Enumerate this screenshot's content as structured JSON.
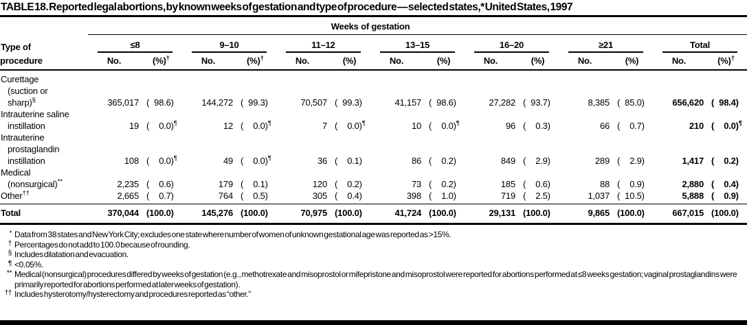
{
  "page": {
    "title": "TABLE 18. Reported legal abortions, by known weeks of gestation and type of procedure — selected states,* United States, 1997"
  },
  "table": {
    "spanner": "Weeks of gestation",
    "stub_head": {
      "line1": "Type of",
      "line2": "procedure"
    },
    "groups": [
      {
        "label": "≤8",
        "no_head": "No.",
        "pct_head": "(%)",
        "pct_sup": "†"
      },
      {
        "label": "9–10",
        "no_head": "No.",
        "pct_head": "(%)",
        "pct_sup": "†"
      },
      {
        "label": "11–12",
        "no_head": "No.",
        "pct_head": "(%)"
      },
      {
        "label": "13–15",
        "no_head": "No.",
        "pct_head": "(%)"
      },
      {
        "label": "16–20",
        "no_head": "No.",
        "pct_head": "(%)"
      },
      {
        "label": "≥21",
        "no_head": "No.",
        "pct_head": "(%)"
      },
      {
        "label": "Total",
        "no_head": "No.",
        "pct_head": "(%)",
        "pct_sup": "†"
      }
    ],
    "rows": [
      {
        "lines": [
          {
            "t": "Curettage"
          },
          {
            "t": "(suction or"
          },
          {
            "t": "sharp)",
            "sup": "§"
          }
        ],
        "cells": [
          {
            "no": "365,017",
            "pct": "( 98.6)"
          },
          {
            "no": "144,272",
            "pct": "( 99.3)"
          },
          {
            "no": "70,507",
            "pct": "( 99.3)"
          },
          {
            "no": "41,157",
            "pct": "( 98.6)"
          },
          {
            "no": "27,282",
            "pct": "( 93.7)"
          },
          {
            "no": "8,385",
            "pct": "( 85.0)"
          },
          {
            "no": "656,620",
            "pct": "( 98.4)"
          }
        ]
      },
      {
        "lines": [
          {
            "t": "Intrauterine saline"
          },
          {
            "t": "instillation"
          }
        ],
        "cells": [
          {
            "no": "19",
            "pct": "(  0.0)",
            "sup": "¶"
          },
          {
            "no": "12",
            "pct": "(  0.0)",
            "sup": "¶"
          },
          {
            "no": "7",
            "pct": "(  0.0)",
            "sup": "¶"
          },
          {
            "no": "10",
            "pct": "(  0.0)",
            "sup": "¶"
          },
          {
            "no": "96",
            "pct": "(  0.3)"
          },
          {
            "no": "66",
            "pct": "(  0.7)"
          },
          {
            "no": "210",
            "pct": "(  0.0)",
            "sup": "¶"
          }
        ]
      },
      {
        "lines": [
          {
            "t": "Intrauterine"
          },
          {
            "t": "prostaglandin"
          },
          {
            "t": "instillation"
          }
        ],
        "cells": [
          {
            "no": "108",
            "pct": "(  0.0)",
            "sup": "¶"
          },
          {
            "no": "49",
            "pct": "(  0.0)",
            "sup": "¶"
          },
          {
            "no": "36",
            "pct": "(  0.1)"
          },
          {
            "no": "86",
            "pct": "(  0.2)"
          },
          {
            "no": "849",
            "pct": "(  2.9)"
          },
          {
            "no": "289",
            "pct": "(  2.9)"
          },
          {
            "no": "1,417",
            "pct": "(  0.2)"
          }
        ]
      },
      {
        "lines": [
          {
            "t": "Medical"
          },
          {
            "t": "(nonsurgical)",
            "sup": "**"
          }
        ],
        "cells": [
          {
            "no": "2,235",
            "pct": "(  0.6)"
          },
          {
            "no": "179",
            "pct": "(  0.1)"
          },
          {
            "no": "120",
            "pct": "(  0.2)"
          },
          {
            "no": "73",
            "pct": "(  0.2)"
          },
          {
            "no": "185",
            "pct": "(  0.6)"
          },
          {
            "no": "88",
            "pct": "(  0.9)"
          },
          {
            "no": "2,880",
            "pct": "(  0.4)"
          }
        ]
      },
      {
        "lines": [
          {
            "t": "Other",
            "sup": "††"
          }
        ],
        "cells": [
          {
            "no": "2,665",
            "pct": "(  0.7)"
          },
          {
            "no": "764",
            "pct": "(  0.5)"
          },
          {
            "no": "305",
            "pct": "(  0.4)"
          },
          {
            "no": "398",
            "pct": "(  1.0)"
          },
          {
            "no": "719",
            "pct": "(  2.5)"
          },
          {
            "no": "1,037",
            "pct": "( 10.5)"
          },
          {
            "no": "5,888",
            "pct": "(  0.9)"
          }
        ]
      }
    ],
    "total": {
      "label": "Total",
      "cells": [
        {
          "no": "370,044",
          "pct": "(100.0)"
        },
        {
          "no": "145,276",
          "pct": "(100.0)"
        },
        {
          "no": "70,975",
          "pct": "(100.0)"
        },
        {
          "no": "41,724",
          "pct": "(100.0)"
        },
        {
          "no": "29,131",
          "pct": "(100.0)"
        },
        {
          "no": "9,865",
          "pct": "(100.0)"
        },
        {
          "no": "667,015",
          "pct": "(100.0)"
        }
      ]
    }
  },
  "footnotes": [
    {
      "mark": "*",
      "text": "Data from 38 states and New York City; excludes one state where number of women of unknown gestational age was reported as >15%."
    },
    {
      "mark": "†",
      "text": "Percentages do not add to 100.0 because of rounding."
    },
    {
      "mark": "§",
      "text": "Includes dilatation and evacuation."
    },
    {
      "mark": "¶",
      "text": "<0.05%."
    },
    {
      "mark": "**",
      "text": "Medical (nonsurgical) procedures differed by weeks of gestation (e.g., methotrexate and misoprostol or mifepristone and misoprostol were reported for abortions performed at ≤8 weeks gestation; vaginal prostaglandins were primarily reported for abortions performed at later weeks of gestation)."
    },
    {
      "mark": "††",
      "text": "Includes hysterotomy/hysterectomy and procedures reported as “other.”"
    }
  ]
}
